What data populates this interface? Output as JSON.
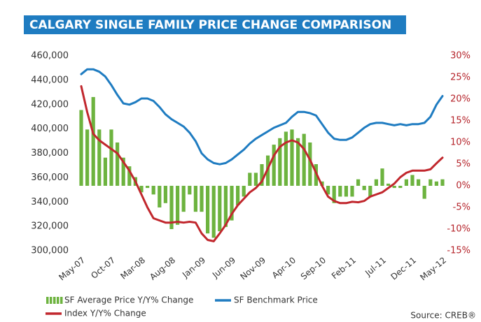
{
  "chart_data": {
    "type": "combo",
    "title": "CALGARY SINGLE FAMILY PRICE CHANGE COMPARISON",
    "source": "Source: CREB®",
    "categories": [
      "May-07",
      null,
      null,
      null,
      null,
      "Oct-07",
      null,
      null,
      null,
      null,
      "Mar-08",
      null,
      null,
      null,
      null,
      "Aug-08",
      null,
      null,
      null,
      null,
      "Jan-09",
      null,
      null,
      null,
      null,
      "Jun-09",
      null,
      null,
      null,
      null,
      "Nov-09",
      null,
      null,
      null,
      null,
      "Apr-10",
      null,
      null,
      null,
      null,
      "Sep-10",
      null,
      null,
      null,
      null,
      "Feb-11",
      null,
      null,
      null,
      null,
      "Jul-11",
      null,
      null,
      null,
      null,
      "Dec-11",
      null,
      null,
      null,
      null,
      "May-12"
    ],
    "series": [
      {
        "name": "SF Average Price Y/Y% Change",
        "type": "bar",
        "axis": "y2",
        "color": "#6db33f",
        "values": [
          17.5,
          13,
          20.5,
          13,
          6.5,
          13,
          10,
          6.5,
          4.5,
          2,
          -1.5,
          -0.5,
          -2,
          -5,
          -4,
          -10,
          -9,
          -6,
          -2,
          -6,
          -6,
          -11,
          -12,
          -10.5,
          -9.5,
          -8,
          -4.5,
          -2.5,
          3,
          3,
          5,
          7,
          9.5,
          11,
          12.5,
          13,
          11,
          12,
          10,
          5,
          1,
          -2,
          -4,
          -2.5,
          -2.5,
          -2.5,
          1.5,
          -1,
          -2.5,
          1.5,
          4,
          0.5,
          -0.5,
          -0.5,
          1.5,
          2.5,
          1.5,
          -3,
          1.5,
          1,
          1.5
        ]
      },
      {
        "name": "SF Benchmark Price",
        "type": "line",
        "axis": "y",
        "color": "#1f7cc1",
        "values": [
          445000,
          449000,
          449000,
          447000,
          443000,
          436000,
          428000,
          421000,
          420000,
          422000,
          425000,
          425000,
          423000,
          418000,
          412000,
          408000,
          405000,
          402000,
          397000,
          390000,
          380000,
          375000,
          372000,
          371000,
          372000,
          375000,
          379000,
          383000,
          388000,
          392000,
          395000,
          398000,
          401000,
          403000,
          405000,
          410000,
          414000,
          414000,
          413000,
          411000,
          404000,
          397000,
          392000,
          391000,
          391000,
          393000,
          397000,
          401000,
          404000,
          405000,
          405000,
          404000,
          403000,
          404000,
          403000,
          404000,
          404000,
          405000,
          410000,
          420000,
          427000
        ]
      },
      {
        "name": "Index Y/Y% Change",
        "type": "line",
        "axis": "y2",
        "color": "#c1272d",
        "values": [
          23,
          17,
          12,
          10.5,
          9.5,
          8.5,
          7.5,
          5.5,
          3.5,
          1,
          -2,
          -5,
          -7.5,
          -8,
          -8.5,
          -8.5,
          -8.3,
          -8.5,
          -8.3,
          -8.5,
          -11,
          -12.5,
          -12.8,
          -11,
          -9,
          -6.5,
          -4.5,
          -3,
          -1.5,
          -0.5,
          1,
          4,
          7,
          9,
          10,
          10.5,
          10,
          8.5,
          6,
          3,
          0,
          -2.5,
          -3.5,
          -4,
          -4,
          -3.7,
          -3.8,
          -3.5,
          -2.5,
          -2,
          -1.5,
          -0.5,
          0.5,
          2,
          3,
          3.5,
          3.5,
          3.5,
          3.8,
          5.2,
          6.5
        ]
      }
    ],
    "ylim": [
      300000,
      460000
    ],
    "yticks": [
      {
        "value": 300000,
        "label": "300,000"
      },
      {
        "value": 320000,
        "label": "320,000"
      },
      {
        "value": 340000,
        "label": "340,000"
      },
      {
        "value": 360000,
        "label": "360,000"
      },
      {
        "value": 380000,
        "label": "380,000"
      },
      {
        "value": 400000,
        "label": "400,000"
      },
      {
        "value": 420000,
        "label": "420,000"
      },
      {
        "value": 440000,
        "label": "440,000"
      },
      {
        "value": 460000,
        "label": "460,000"
      }
    ],
    "y2lim": [
      -15,
      30
    ],
    "y2ticks": [
      {
        "value": -15,
        "label": "-15%"
      },
      {
        "value": -10,
        "label": "-10%"
      },
      {
        "value": -5,
        "label": "-5%"
      },
      {
        "value": 0,
        "label": "0%"
      },
      {
        "value": 5,
        "label": "5%"
      },
      {
        "value": 10,
        "label": "10%"
      },
      {
        "value": 15,
        "label": "15%"
      },
      {
        "value": 20,
        "label": "20%"
      },
      {
        "value": 25,
        "label": "25%"
      },
      {
        "value": 30,
        "label": "30%"
      }
    ],
    "grid": false,
    "legend": "bottom"
  }
}
